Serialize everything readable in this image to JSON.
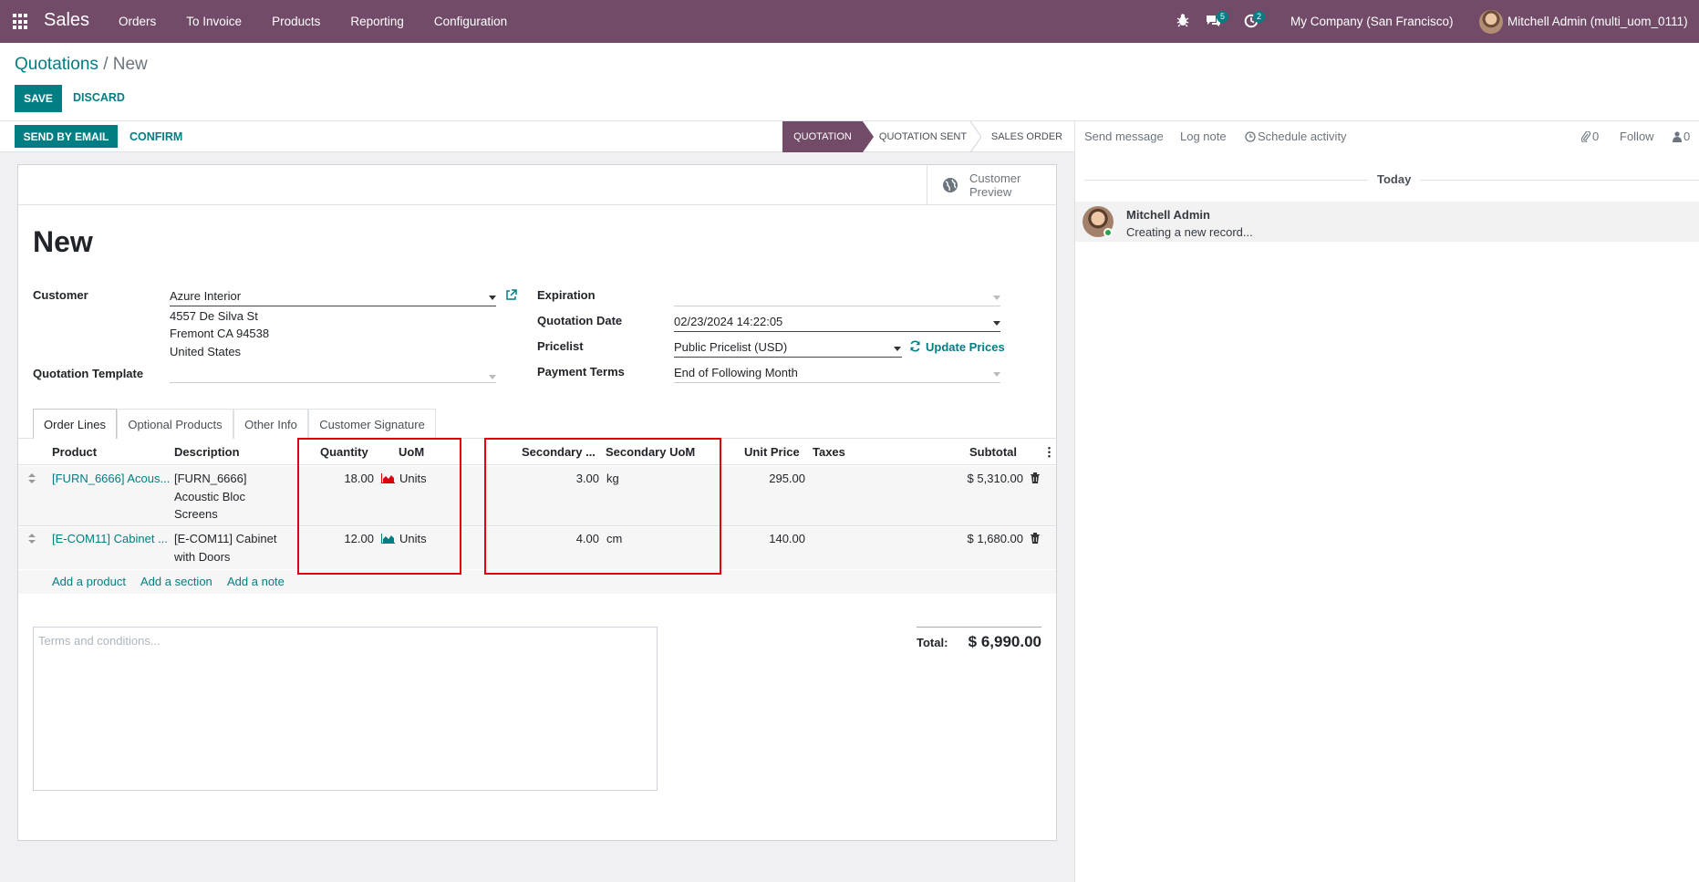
{
  "navbar": {
    "app_name": "Sales",
    "menu": [
      "Orders",
      "To Invoice",
      "Products",
      "Reporting",
      "Configuration"
    ],
    "messages_count": "5",
    "activities_count": "2",
    "company": "My Company (San Francisco)",
    "user": "Mitchell Admin (multi_uom_0111)"
  },
  "breadcrumb": {
    "parent": "Quotations",
    "separator": "/",
    "current": "New"
  },
  "control": {
    "save": "SAVE",
    "discard": "DISCARD"
  },
  "statusbar": {
    "send_by_email": "SEND BY EMAIL",
    "confirm": "CONFIRM",
    "stages": [
      "QUOTATION",
      "QUOTATION SENT",
      "SALES ORDER"
    ],
    "active_stage": "QUOTATION"
  },
  "form": {
    "customer_preview": [
      "Customer",
      "Preview"
    ],
    "title": "New",
    "customer_label": "Customer",
    "customer_value": "Azure Interior",
    "address": [
      "4557 De Silva St",
      "Fremont CA 94538",
      "United States"
    ],
    "quotation_template_label": "Quotation Template",
    "expiration_label": "Expiration",
    "quotation_date_label": "Quotation Date",
    "quotation_date_value": "02/23/2024 14:22:05",
    "pricelist_label": "Pricelist",
    "pricelist_value": "Public Pricelist (USD)",
    "update_prices": "Update Prices",
    "payment_terms_label": "Payment Terms",
    "payment_terms_value": "End of Following Month"
  },
  "tabs": [
    "Order Lines",
    "Optional Products",
    "Other Info",
    "Customer Signature"
  ],
  "table": {
    "headers": {
      "product": "Product",
      "description": "Description",
      "quantity": "Quantity",
      "uom": "UoM",
      "secondary_qty": "Secondary ...",
      "secondary_uom": "Secondary UoM",
      "unit_price": "Unit Price",
      "taxes": "Taxes",
      "subtotal": "Subtotal"
    },
    "rows": [
      {
        "product": "[FURN_6666] Acous...",
        "description": [
          "[FURN_6666]",
          "Acoustic Bloc",
          "Screens"
        ],
        "quantity": "18.00",
        "uom": "Units",
        "secondary_qty": "3.00",
        "secondary_uom": "kg",
        "unit_price": "295.00",
        "subtotal": "$ 5,310.00",
        "forecast_color": "#d9000d"
      },
      {
        "product": "[E-COM11] Cabinet ...",
        "description": [
          "[E-COM11] Cabinet",
          "with Doors"
        ],
        "quantity": "12.00",
        "uom": "Units",
        "secondary_qty": "4.00",
        "secondary_uom": "cm",
        "unit_price": "140.00",
        "subtotal": "$ 1,680.00",
        "forecast_color": "#017e84"
      }
    ],
    "add_product": "Add a product",
    "add_section": "Add a section",
    "add_note": "Add a note"
  },
  "terms_placeholder": "Terms and conditions...",
  "total_label": "Total:",
  "total_value": "$ 6,990.00",
  "chatter": {
    "send_message": "Send message",
    "log_note": "Log note",
    "schedule_activity": "Schedule activity",
    "attachments": "0",
    "follow": "Follow",
    "followers": "0",
    "today": "Today",
    "author": "Mitchell Admin",
    "message": "Creating a new record..."
  },
  "colors": {
    "brand": "#714b67",
    "accent": "#017e84",
    "highlight": "#e3000f"
  }
}
